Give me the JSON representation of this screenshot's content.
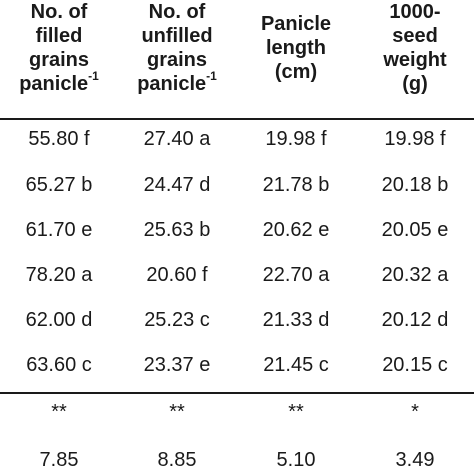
{
  "headers": [
    {
      "lines": [
        "No. of",
        "filled",
        "grains",
        "panicle"
      ],
      "sup": "-1"
    },
    {
      "lines": [
        "No. of",
        "unfilled",
        "grains",
        "panicle"
      ],
      "sup": "-1"
    },
    {
      "lines": [
        "Panicle",
        "length",
        "(cm)"
      ],
      "sup": ""
    },
    {
      "lines": [
        "1000-",
        "seed",
        "weight",
        "(g)"
      ],
      "sup": ""
    }
  ],
  "rows": [
    [
      "55.80 f",
      "27.40 a",
      "19.98 f",
      "19.98 f"
    ],
    [
      "65.27 b",
      "24.47 d",
      "21.78 b",
      "20.18 b"
    ],
    [
      "61.70 e",
      "25.63 b",
      "20.62 e",
      "20.05 e"
    ],
    [
      "78.20 a",
      "20.60 f",
      "22.70 a",
      "20.32 a"
    ],
    [
      "62.00 d",
      "25.23 c",
      "21.33 d",
      "20.12 d"
    ],
    [
      "63.60 c",
      "23.37 e",
      "21.45 c",
      "20.15 c"
    ]
  ],
  "significance": [
    "**",
    "**",
    "**",
    "*"
  ],
  "cv": [
    "7.85",
    "8.85",
    "5.10",
    "3.49"
  ]
}
